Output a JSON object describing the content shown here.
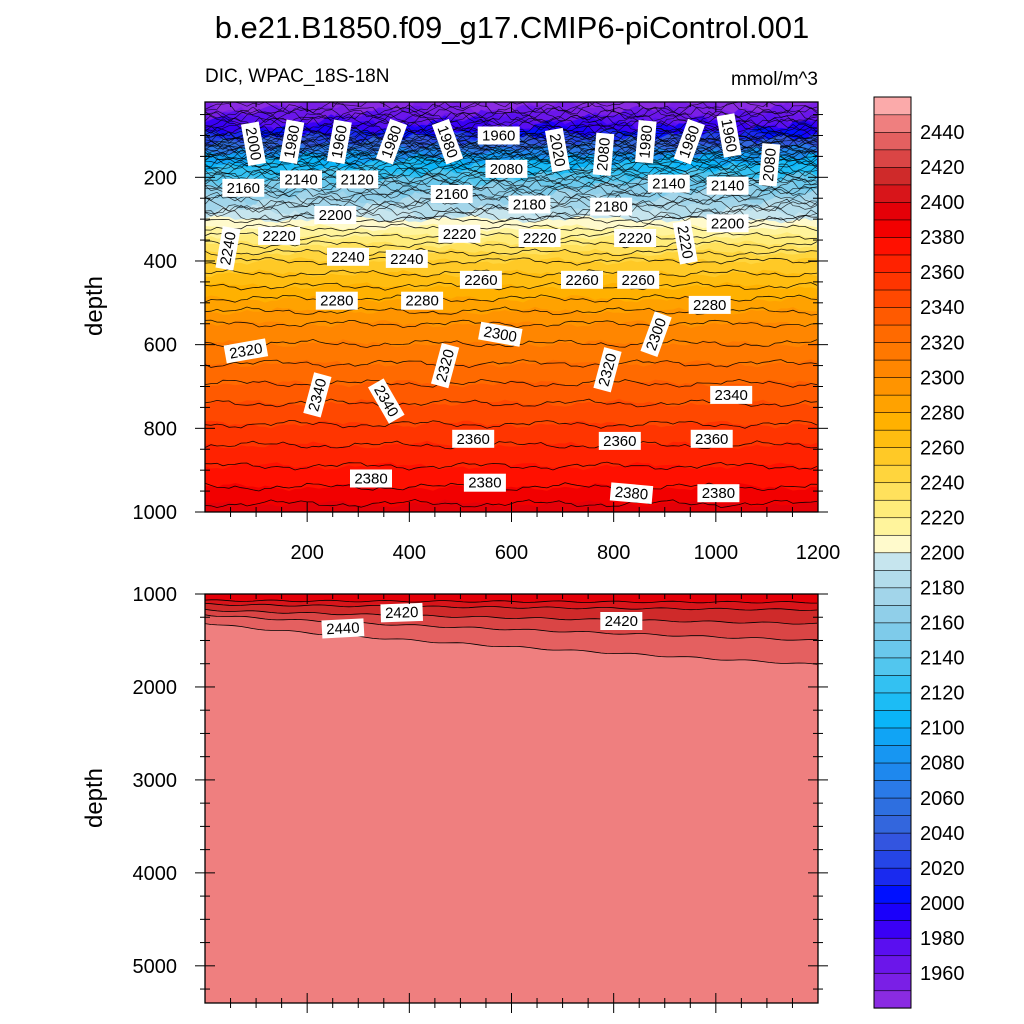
{
  "title": "b.e21.B1850.f09_g17.CMIP6-piControl.001",
  "chart_data": {
    "type": "contour",
    "variable": "DIC, WPAC_18S-18N",
    "units": "mmol/m^3",
    "ylabel": "depth",
    "xlim": [
      0,
      1200
    ],
    "x_ticks": [
      200,
      400,
      600,
      800,
      1000,
      1200
    ],
    "colorbar": {
      "levels": [
        1940,
        1950,
        1960,
        1970,
        1980,
        1990,
        2000,
        2010,
        2020,
        2030,
        2040,
        2050,
        2060,
        2070,
        2080,
        2090,
        2100,
        2110,
        2120,
        2130,
        2140,
        2150,
        2160,
        2170,
        2180,
        2190,
        2200,
        2210,
        2220,
        2230,
        2240,
        2250,
        2260,
        2270,
        2280,
        2290,
        2300,
        2310,
        2320,
        2330,
        2340,
        2350,
        2360,
        2370,
        2380,
        2390,
        2400,
        2410,
        2420,
        2430,
        2440,
        2450,
        2460
      ],
      "colors": [
        "#8a2be2",
        "#7a1fe6",
        "#6b16ea",
        "#5a0ff0",
        "#3a00f5",
        "#1a00fa",
        "#0010ff",
        "#1a2aef",
        "#2545e6",
        "#3355e0",
        "#3366dd",
        "#2e6fe0",
        "#2a7ae8",
        "#1e88ee",
        "#1796f2",
        "#10a4f5",
        "#0ab4f8",
        "#1cbcf5",
        "#33c1f2",
        "#52c6ee",
        "#6ac8ec",
        "#7ecbea",
        "#90cfe9",
        "#a2d5ea",
        "#b2dceb",
        "#c6e5ee",
        "#fffacc",
        "#fff49c",
        "#ffec7a",
        "#ffe15c",
        "#ffd53d",
        "#ffc926",
        "#ffbd10",
        "#ffb100",
        "#ffa200",
        "#ff9400",
        "#ff8600",
        "#ff7800",
        "#ff6a00",
        "#ff5a00",
        "#ff4800",
        "#ff3500",
        "#ff2200",
        "#ff1000",
        "#f20000",
        "#e40008",
        "#d8151a",
        "#cf2a2a",
        "#da4545",
        "#e46060",
        "#ef7f7f",
        "#fbaaaa"
      ],
      "tick_labels": [
        "1960",
        "1980",
        "2000",
        "2020",
        "2040",
        "2060",
        "2080",
        "2100",
        "2120",
        "2140",
        "2160",
        "2180",
        "2200",
        "2220",
        "2240",
        "2260",
        "2280",
        "2300",
        "2320",
        "2340",
        "2360",
        "2380",
        "2400",
        "2420",
        "2440"
      ]
    },
    "upper_panel": {
      "ylim": [
        1000,
        20
      ],
      "y_ticks": [
        200,
        400,
        600,
        800,
        1000
      ],
      "x_tick_labels": [
        "200",
        "400",
        "600",
        "800",
        "1000",
        "1200"
      ],
      "isoline_depths": [
        {
          "dic": 1940,
          "depth": 20
        },
        {
          "dic": 2000,
          "depth": 95
        },
        {
          "dic": 2100,
          "depth": 160
        },
        {
          "dic": 2160,
          "depth": 230
        },
        {
          "dic": 2200,
          "depth": 300
        },
        {
          "dic": 2250,
          "depth": 400
        },
        {
          "dic": 2300,
          "depth": 550
        },
        {
          "dic": 2340,
          "depth": 740
        },
        {
          "dic": 2360,
          "depth": 840
        },
        {
          "dic": 2380,
          "depth": 940
        },
        {
          "dic": 2395,
          "depth": 1000
        }
      ],
      "contour_labels": [
        {
          "text": "2000",
          "x": 95,
          "depth": 120,
          "angle": 80
        },
        {
          "text": "1980",
          "x": 170,
          "depth": 115,
          "angle": -80
        },
        {
          "text": "1960",
          "x": 263,
          "depth": 115,
          "angle": -80
        },
        {
          "text": "1980",
          "x": 365,
          "depth": 115,
          "angle": -70
        },
        {
          "text": "1980",
          "x": 475,
          "depth": 115,
          "angle": 70
        },
        {
          "text": "1960",
          "x": 575,
          "depth": 100,
          "angle": 0
        },
        {
          "text": "2020",
          "x": 690,
          "depth": 135,
          "angle": 80
        },
        {
          "text": "2080",
          "x": 780,
          "depth": 145,
          "angle": -85
        },
        {
          "text": "1980",
          "x": 863,
          "depth": 115,
          "angle": -85
        },
        {
          "text": "1980",
          "x": 948,
          "depth": 115,
          "angle": -70
        },
        {
          "text": "1960",
          "x": 1026,
          "depth": 100,
          "angle": 80
        },
        {
          "text": "2080",
          "x": 1105,
          "depth": 170,
          "angle": -85
        },
        {
          "text": "2080",
          "x": 590,
          "depth": 180,
          "angle": 0
        },
        {
          "text": "2160",
          "x": 75,
          "depth": 225,
          "angle": 0
        },
        {
          "text": "2140",
          "x": 188,
          "depth": 205,
          "angle": 0
        },
        {
          "text": "2120",
          "x": 298,
          "depth": 205,
          "angle": 0
        },
        {
          "text": "2160",
          "x": 483,
          "depth": 240,
          "angle": 0
        },
        {
          "text": "2180",
          "x": 635,
          "depth": 265,
          "angle": 0
        },
        {
          "text": "2180",
          "x": 795,
          "depth": 270,
          "angle": 0
        },
        {
          "text": "2140",
          "x": 908,
          "depth": 215,
          "angle": 0
        },
        {
          "text": "2140",
          "x": 1023,
          "depth": 220,
          "angle": 0
        },
        {
          "text": "2200",
          "x": 255,
          "depth": 290,
          "angle": 0
        },
        {
          "text": "2200",
          "x": 1023,
          "depth": 310,
          "angle": 0
        },
        {
          "text": "2240",
          "x": 45,
          "depth": 370,
          "angle": -80
        },
        {
          "text": "2220",
          "x": 145,
          "depth": 340,
          "angle": 0
        },
        {
          "text": "2220",
          "x": 498,
          "depth": 335,
          "angle": 0
        },
        {
          "text": "2220",
          "x": 655,
          "depth": 345,
          "angle": 0
        },
        {
          "text": "2220",
          "x": 842,
          "depth": 345,
          "angle": 0
        },
        {
          "text": "2220",
          "x": 940,
          "depth": 355,
          "angle": 80
        },
        {
          "text": "2240",
          "x": 280,
          "depth": 390,
          "angle": 0
        },
        {
          "text": "2240",
          "x": 395,
          "depth": 395,
          "angle": 0
        },
        {
          "text": "2260",
          "x": 540,
          "depth": 445,
          "angle": 0
        },
        {
          "text": "2260",
          "x": 738,
          "depth": 445,
          "angle": 0
        },
        {
          "text": "2260",
          "x": 848,
          "depth": 445,
          "angle": 0
        },
        {
          "text": "2280",
          "x": 258,
          "depth": 495,
          "angle": 0
        },
        {
          "text": "2280",
          "x": 425,
          "depth": 495,
          "angle": 0
        },
        {
          "text": "2280",
          "x": 988,
          "depth": 505,
          "angle": 0
        },
        {
          "text": "2300",
          "x": 578,
          "depth": 575,
          "angle": 10
        },
        {
          "text": "2300",
          "x": 883,
          "depth": 575,
          "angle": -70
        },
        {
          "text": "2320",
          "x": 80,
          "depth": 615,
          "angle": -10
        },
        {
          "text": "2320",
          "x": 470,
          "depth": 650,
          "angle": -75
        },
        {
          "text": "2320",
          "x": 788,
          "depth": 660,
          "angle": -75
        },
        {
          "text": "2340",
          "x": 220,
          "depth": 720,
          "angle": -75
        },
        {
          "text": "2340",
          "x": 355,
          "depth": 735,
          "angle": 60
        },
        {
          "text": "2340",
          "x": 1030,
          "depth": 720,
          "angle": 0
        },
        {
          "text": "2360",
          "x": 525,
          "depth": 825,
          "angle": 0
        },
        {
          "text": "2360",
          "x": 812,
          "depth": 830,
          "angle": 0
        },
        {
          "text": "2360",
          "x": 992,
          "depth": 825,
          "angle": 0
        },
        {
          "text": "2380",
          "x": 325,
          "depth": 920,
          "angle": 0
        },
        {
          "text": "2380",
          "x": 548,
          "depth": 930,
          "angle": 0
        },
        {
          "text": "2380",
          "x": 835,
          "depth": 955,
          "angle": 5
        },
        {
          "text": "2380",
          "x": 1005,
          "depth": 955,
          "angle": 0
        }
      ]
    },
    "lower_panel": {
      "ylim": [
        1000,
        5400
      ],
      "y_ticks": [
        1000,
        2000,
        3000,
        4000,
        5000
      ],
      "isoline_depths": [
        {
          "dic": 2400,
          "depth_start": 1070,
          "depth_end": 1090
        },
        {
          "dic": 2410,
          "depth_start": 1110,
          "depth_end": 1170
        },
        {
          "dic": 2420,
          "depth_start": 1170,
          "depth_end": 1320
        },
        {
          "dic": 2430,
          "depth_start": 1220,
          "depth_end": 1500
        },
        {
          "dic": 2440,
          "depth_start": 1310,
          "depth_end": 1760
        }
      ],
      "contour_labels": [
        {
          "text": "2420",
          "x": 385,
          "depth": 1200,
          "angle": -2
        },
        {
          "text": "2420",
          "x": 815,
          "depth": 1290,
          "angle": 0
        },
        {
          "text": "2440",
          "x": 270,
          "depth": 1370,
          "angle": -3
        }
      ]
    }
  }
}
